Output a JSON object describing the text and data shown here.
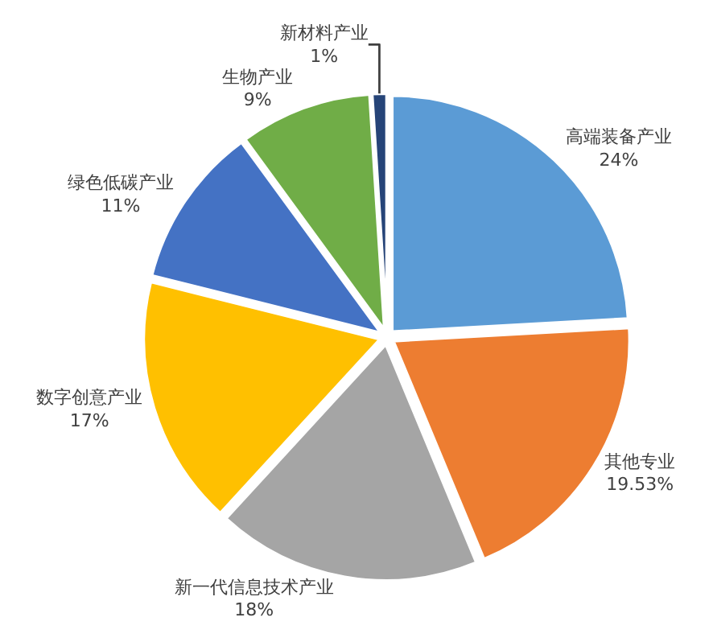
{
  "chart_data": {
    "type": "pie",
    "categories": [
      "高端装备产业",
      "其他专业",
      "新一代信息技术产业",
      "数字创意产业",
      "绿色低碳产业",
      "生物产业",
      "新材料产业"
    ],
    "values": [
      24,
      19.53,
      18,
      17,
      11,
      9,
      1
    ],
    "value_labels": [
      "24%",
      "19.53%",
      "18%",
      "17%",
      "11%",
      "9%",
      "1%"
    ],
    "colors": [
      "#5b9bd5",
      "#ed7d31",
      "#a5a5a5",
      "#ffc000",
      "#4472c4",
      "#70ad47",
      "#264478"
    ],
    "legend": false
  }
}
